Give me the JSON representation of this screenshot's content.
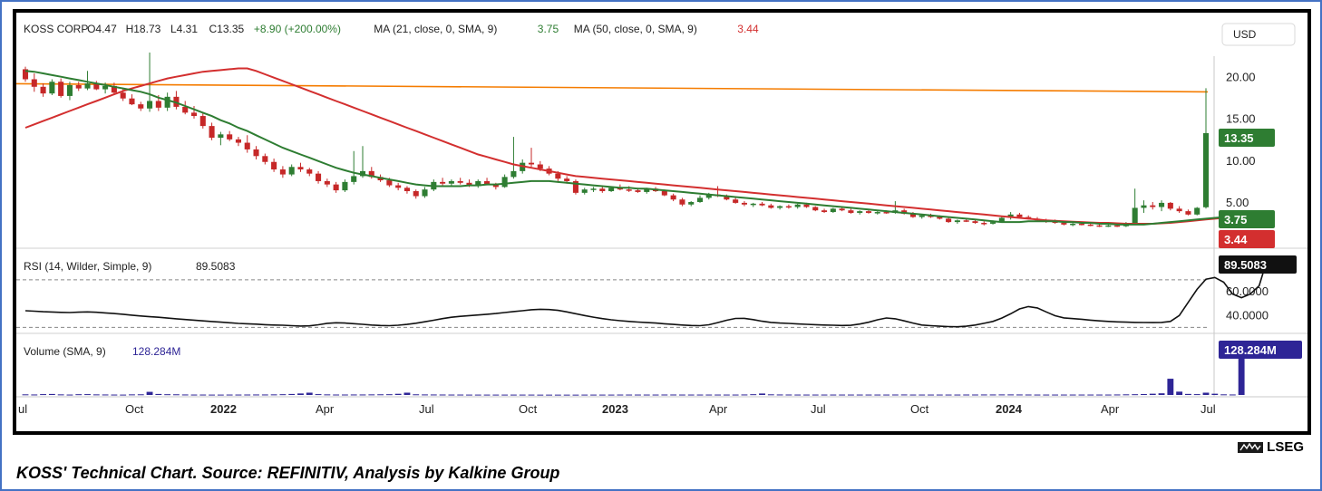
{
  "caption": "KOSS' Technical Chart. Source: REFINITIV, Analysis by Kalkine Group",
  "brand": "LSEG",
  "currency_button": "USD",
  "colors": {
    "up": "#2e7d32",
    "down": "#c62828",
    "ma21": "#2e7d32",
    "ma50": "#d32f2f",
    "resistance": "#f57c00",
    "rsi": "#111111",
    "volume": "#2e2596",
    "frame": "#4472c4"
  },
  "legend": {
    "symbol": "KOSS CORP",
    "open": "O4.47",
    "high": "H18.73",
    "low": "L4.31",
    "close": "C13.35",
    "change": "+8.90 (+200.00%)",
    "ma21_label": "MA (21, close, 0, SMA, 9)",
    "ma21_value": "3.75",
    "ma50_label": "MA (50, close, 0, SMA, 9)",
    "ma50_value": "3.44"
  },
  "rsi_legend": {
    "label": "RSI (14, Wilder, Simple, 9)",
    "value": "89.5083"
  },
  "volume_legend": {
    "label": "Volume (SMA, 9)",
    "value": "128.284M"
  },
  "badges": {
    "last": "13.35",
    "ma21": "3.75",
    "ma50": "3.44",
    "rsi": "89.5083",
    "volume": "128.284M"
  },
  "chart_data": {
    "type": "candlestick",
    "x_labels": [
      "ul",
      "Oct",
      "2022",
      "Apr",
      "Jul",
      "Oct",
      "2023",
      "Apr",
      "Jul",
      "Oct",
      "2024",
      "Apr",
      "Jul"
    ],
    "bold_labels": [
      "2022",
      "2023",
      "2024"
    ],
    "price_ticks": [
      "20.00",
      "15.00",
      "10.00",
      "5.00"
    ],
    "price_range": [
      0,
      23
    ],
    "resistance_level": 18.4,
    "candles": [
      [
        21.0,
        21.3,
        19.5,
        19.8
      ],
      [
        19.8,
        20.5,
        18.3,
        18.9
      ],
      [
        18.9,
        19.3,
        17.7,
        18.1
      ],
      [
        18.1,
        19.8,
        17.9,
        19.5
      ],
      [
        19.5,
        19.9,
        17.6,
        17.8
      ],
      [
        17.8,
        19.5,
        17.3,
        19.1
      ],
      [
        19.1,
        19.5,
        18.4,
        18.7
      ],
      [
        18.7,
        20.8,
        18.5,
        19.3
      ],
      [
        19.3,
        19.6,
        18.5,
        18.6
      ],
      [
        18.6,
        19.4,
        18.1,
        19.0
      ],
      [
        19.0,
        19.4,
        17.9,
        18.2
      ],
      [
        18.2,
        18.6,
        17.2,
        17.5
      ],
      [
        17.5,
        18.0,
        16.7,
        16.8
      ],
      [
        16.8,
        17.1,
        16.0,
        16.3
      ],
      [
        16.3,
        23.0,
        15.9,
        17.2
      ],
      [
        17.2,
        17.9,
        16.0,
        16.4
      ],
      [
        16.4,
        18.2,
        16.0,
        17.7
      ],
      [
        17.7,
        18.4,
        16.2,
        16.5
      ],
      [
        16.5,
        17.2,
        15.6,
        15.8
      ],
      [
        15.8,
        16.6,
        15.1,
        15.4
      ],
      [
        15.4,
        15.8,
        13.9,
        14.2
      ],
      [
        14.2,
        14.6,
        12.5,
        12.8
      ],
      [
        12.8,
        13.5,
        11.9,
        13.2
      ],
      [
        13.2,
        13.6,
        12.4,
        12.6
      ],
      [
        12.6,
        12.9,
        11.8,
        12.2
      ],
      [
        12.2,
        13.1,
        11.0,
        11.4
      ],
      [
        11.4,
        11.8,
        10.2,
        10.6
      ],
      [
        10.6,
        10.9,
        9.6,
        9.9
      ],
      [
        9.9,
        10.3,
        8.7,
        9.0
      ],
      [
        9.0,
        9.4,
        8.0,
        8.4
      ],
      [
        8.4,
        9.6,
        8.2,
        9.3
      ],
      [
        9.3,
        9.8,
        8.7,
        9.0
      ],
      [
        9.0,
        9.2,
        8.2,
        8.5
      ],
      [
        8.5,
        8.8,
        7.3,
        7.6
      ],
      [
        7.6,
        7.9,
        6.9,
        7.2
      ],
      [
        7.2,
        7.5,
        6.2,
        6.5
      ],
      [
        6.5,
        7.8,
        6.3,
        7.5
      ],
      [
        7.5,
        11.2,
        7.2,
        8.2
      ],
      [
        8.2,
        11.8,
        8.0,
        8.8
      ],
      [
        8.8,
        9.3,
        7.9,
        8.1
      ],
      [
        8.1,
        8.4,
        7.5,
        7.7
      ],
      [
        7.7,
        8.0,
        6.9,
        7.1
      ],
      [
        7.1,
        7.4,
        6.5,
        6.8
      ],
      [
        6.8,
        7.0,
        6.1,
        6.4
      ],
      [
        6.4,
        6.6,
        5.5,
        5.8
      ],
      [
        5.8,
        6.9,
        5.6,
        6.6
      ],
      [
        6.6,
        7.8,
        6.4,
        7.5
      ],
      [
        7.5,
        8.0,
        7.0,
        7.3
      ],
      [
        7.3,
        7.8,
        7.0,
        7.6
      ],
      [
        7.6,
        8.0,
        7.2,
        7.4
      ],
      [
        7.4,
        7.8,
        6.9,
        7.0
      ],
      [
        7.0,
        7.8,
        6.8,
        7.6
      ],
      [
        7.6,
        8.0,
        7.1,
        7.2
      ],
      [
        7.2,
        7.4,
        6.6,
        6.9
      ],
      [
        6.9,
        8.4,
        6.8,
        8.1
      ],
      [
        8.1,
        12.9,
        7.9,
        8.8
      ],
      [
        8.8,
        10.2,
        8.5,
        9.8
      ],
      [
        9.8,
        11.6,
        9.3,
        9.6
      ],
      [
        9.6,
        10.0,
        8.8,
        9.1
      ],
      [
        9.1,
        9.4,
        8.3,
        8.5
      ],
      [
        8.5,
        8.8,
        7.6,
        7.9
      ],
      [
        7.9,
        8.2,
        7.3,
        7.6
      ],
      [
        7.6,
        7.8,
        6.0,
        6.2
      ],
      [
        6.2,
        6.8,
        6.0,
        6.6
      ],
      [
        6.6,
        6.9,
        6.3,
        6.7
      ],
      [
        6.7,
        6.9,
        6.2,
        6.4
      ],
      [
        6.4,
        7.0,
        6.3,
        6.8
      ],
      [
        6.8,
        7.2,
        6.5,
        6.6
      ],
      [
        6.6,
        7.0,
        6.3,
        6.5
      ],
      [
        6.5,
        6.8,
        6.2,
        6.3
      ],
      [
        6.3,
        6.8,
        6.1,
        6.7
      ],
      [
        6.7,
        6.9,
        6.3,
        6.4
      ],
      [
        6.4,
        6.6,
        5.8,
        5.9
      ],
      [
        5.9,
        6.1,
        5.2,
        5.4
      ],
      [
        5.4,
        5.6,
        4.6,
        4.8
      ],
      [
        4.8,
        5.2,
        4.6,
        5.1
      ],
      [
        5.1,
        5.9,
        5.0,
        5.6
      ],
      [
        5.6,
        6.2,
        5.4,
        6.0
      ],
      [
        6.0,
        7.0,
        5.7,
        5.8
      ],
      [
        5.8,
        6.0,
        5.3,
        5.4
      ],
      [
        5.4,
        5.6,
        4.9,
        5.0
      ],
      [
        5.0,
        5.2,
        4.6,
        4.8
      ],
      [
        4.8,
        5.0,
        4.5,
        4.9
      ],
      [
        4.9,
        5.1,
        4.6,
        4.7
      ],
      [
        4.7,
        4.9,
        4.3,
        4.4
      ],
      [
        4.4,
        4.7,
        4.2,
        4.6
      ],
      [
        4.6,
        4.8,
        4.3,
        4.5
      ],
      [
        4.5,
        4.9,
        4.3,
        4.8
      ],
      [
        4.8,
        5.0,
        4.4,
        4.5
      ],
      [
        4.5,
        4.6,
        4.0,
        4.1
      ],
      [
        4.1,
        4.3,
        3.8,
        3.9
      ],
      [
        3.9,
        4.4,
        3.8,
        4.3
      ],
      [
        4.3,
        4.6,
        4.0,
        4.1
      ],
      [
        4.1,
        4.3,
        3.7,
        3.8
      ],
      [
        3.8,
        4.1,
        3.6,
        4.0
      ],
      [
        4.0,
        4.2,
        3.7,
        3.8
      ],
      [
        3.8,
        4.0,
        3.6,
        3.9
      ],
      [
        3.9,
        4.1,
        3.7,
        3.8
      ],
      [
        3.8,
        5.2,
        3.7,
        4.1
      ],
      [
        4.1,
        4.3,
        3.6,
        3.7
      ],
      [
        3.7,
        3.9,
        3.2,
        3.3
      ],
      [
        3.3,
        3.6,
        3.1,
        3.5
      ],
      [
        3.5,
        3.7,
        3.2,
        3.3
      ],
      [
        3.3,
        3.5,
        3.0,
        3.1
      ],
      [
        3.1,
        3.3,
        2.6,
        2.7
      ],
      [
        2.7,
        3.0,
        2.5,
        2.9
      ],
      [
        2.9,
        3.2,
        2.7,
        2.8
      ],
      [
        2.8,
        3.0,
        2.5,
        2.6
      ],
      [
        2.6,
        2.8,
        2.3,
        2.5
      ],
      [
        2.5,
        2.9,
        2.4,
        2.7
      ],
      [
        2.7,
        3.4,
        2.6,
        3.2
      ],
      [
        3.2,
        3.9,
        3.0,
        3.6
      ],
      [
        3.6,
        3.8,
        3.1,
        3.3
      ],
      [
        3.3,
        3.5,
        3.0,
        3.1
      ],
      [
        3.1,
        3.3,
        2.8,
        2.9
      ],
      [
        2.9,
        3.1,
        2.6,
        2.8
      ],
      [
        2.8,
        3.0,
        2.5,
        2.6
      ],
      [
        2.6,
        2.8,
        2.3,
        2.4
      ],
      [
        2.4,
        2.6,
        2.2,
        2.5
      ],
      [
        2.5,
        2.7,
        2.3,
        2.4
      ],
      [
        2.4,
        2.6,
        2.2,
        2.3
      ],
      [
        2.3,
        2.5,
        2.1,
        2.2
      ],
      [
        2.2,
        2.4,
        2.1,
        2.3
      ],
      [
        2.3,
        2.5,
        2.1,
        2.2
      ],
      [
        2.2,
        2.7,
        2.1,
        2.6
      ],
      [
        2.6,
        6.7,
        2.5,
        4.4
      ],
      [
        4.4,
        5.3,
        3.8,
        4.7
      ],
      [
        4.7,
        5.1,
        4.2,
        4.5
      ],
      [
        4.5,
        5.3,
        4.0,
        5.0
      ],
      [
        5.0,
        5.1,
        4.1,
        4.3
      ],
      [
        4.3,
        4.6,
        3.8,
        4.0
      ],
      [
        4.0,
        4.2,
        3.5,
        3.6
      ],
      [
        3.6,
        4.5,
        3.5,
        4.4
      ],
      [
        4.47,
        18.73,
        4.31,
        13.35
      ]
    ],
    "ma21": [
      20.8,
      20.7,
      20.5,
      20.3,
      20.1,
      19.9,
      19.7,
      19.5,
      19.3,
      19.1,
      18.9,
      18.7,
      18.5,
      18.3,
      18.0,
      17.6,
      17.3,
      17.0,
      16.6,
      16.2,
      15.8,
      15.4,
      14.9,
      14.5,
      14.0,
      13.6,
      13.1,
      12.6,
      12.1,
      11.6,
      11.2,
      10.8,
      10.4,
      10.0,
      9.6,
      9.2,
      8.9,
      8.6,
      8.4,
      8.2,
      8.0,
      7.8,
      7.6,
      7.4,
      7.2,
      7.1,
      7.0,
      7.0,
      7.0,
      7.0,
      7.1,
      7.1,
      7.2,
      7.2,
      7.3,
      7.4,
      7.5,
      7.6,
      7.6,
      7.6,
      7.5,
      7.4,
      7.3,
      7.2,
      7.1,
      7.0,
      6.9,
      6.8,
      6.8,
      6.7,
      6.7,
      6.6,
      6.5,
      6.4,
      6.3,
      6.2,
      6.1,
      6.0,
      5.9,
      5.8,
      5.7,
      5.6,
      5.5,
      5.4,
      5.3,
      5.2,
      5.1,
      5.0,
      4.9,
      4.8,
      4.7,
      4.6,
      4.5,
      4.4,
      4.3,
      4.2,
      4.1,
      4.0,
      3.9,
      3.8,
      3.7,
      3.6,
      3.5,
      3.4,
      3.3,
      3.2,
      3.1,
      3.0,
      2.9,
      2.8,
      2.7,
      2.7,
      2.7,
      2.8,
      2.8,
      2.8,
      2.8,
      2.7,
      2.7,
      2.6,
      2.6,
      2.5,
      2.5,
      2.4,
      2.4,
      2.4,
      2.4,
      2.5,
      2.6,
      2.7,
      2.8,
      2.9,
      3.0,
      3.1,
      3.2,
      3.3,
      3.75
    ],
    "ma50": [
      14.0,
      14.4,
      14.8,
      15.2,
      15.6,
      16.0,
      16.4,
      16.8,
      17.2,
      17.6,
      18.0,
      18.4,
      18.7,
      19.0,
      19.3,
      19.6,
      19.9,
      20.1,
      20.3,
      20.5,
      20.7,
      20.8,
      20.9,
      21.0,
      21.1,
      21.1,
      20.8,
      20.4,
      20.0,
      19.6,
      19.2,
      18.8,
      18.4,
      18.0,
      17.6,
      17.2,
      16.8,
      16.4,
      16.0,
      15.6,
      15.2,
      14.8,
      14.4,
      14.0,
      13.6,
      13.2,
      12.8,
      12.4,
      12.0,
      11.6,
      11.2,
      10.8,
      10.5,
      10.2,
      9.9,
      9.6,
      9.4,
      9.2,
      9.0,
      8.8,
      8.6,
      8.4,
      8.2,
      8.1,
      8.0,
      7.9,
      7.8,
      7.7,
      7.6,
      7.5,
      7.4,
      7.3,
      7.2,
      7.1,
      7.0,
      6.9,
      6.8,
      6.7,
      6.6,
      6.5,
      6.4,
      6.3,
      6.2,
      6.1,
      6.0,
      5.9,
      5.8,
      5.7,
      5.6,
      5.5,
      5.4,
      5.3,
      5.2,
      5.1,
      5.0,
      4.9,
      4.8,
      4.7,
      4.6,
      4.5,
      4.4,
      4.3,
      4.2,
      4.1,
      4.0,
      3.9,
      3.8,
      3.7,
      3.6,
      3.5,
      3.4,
      3.3,
      3.2,
      3.1,
      3.0,
      2.9,
      2.85,
      2.8,
      2.75,
      2.7,
      2.65,
      2.6,
      2.6,
      2.55,
      2.5,
      2.5,
      2.5,
      2.5,
      2.55,
      2.6,
      2.7,
      2.8,
      2.9,
      3.0,
      3.1,
      3.2,
      3.44
    ],
    "rsi_ticks": [
      "60.0000",
      "40.0000"
    ],
    "rsi_range": [
      28,
      92
    ],
    "rsi_levels": [
      70,
      30
    ],
    "rsi": [
      44.0,
      43.6,
      43.2,
      42.9,
      42.6,
      42.5,
      42.8,
      43.0,
      42.7,
      42.2,
      41.6,
      41.0,
      40.3,
      39.6,
      39.0,
      38.5,
      37.8,
      37.2,
      36.6,
      36.1,
      35.5,
      34.9,
      34.4,
      33.9,
      33.3,
      33.0,
      32.7,
      32.3,
      32.0,
      31.8,
      31.4,
      31.1,
      31.3,
      32.2,
      33.4,
      33.9,
      33.6,
      33.1,
      32.6,
      32.0,
      31.6,
      31.4,
      31.8,
      32.5,
      33.5,
      34.7,
      36.0,
      37.4,
      38.5,
      39.3,
      39.9,
      40.4,
      41.0,
      41.6,
      42.5,
      43.3,
      44.0,
      44.8,
      45.2,
      45.0,
      44.3,
      43.0,
      41.5,
      40.0,
      38.6,
      37.4,
      36.4,
      35.6,
      35.0,
      34.5,
      34.0,
      33.6,
      33.0,
      32.5,
      32.0,
      31.6,
      31.4,
      32.2,
      34.0,
      36.0,
      37.5,
      37.6,
      36.5,
      35.2,
      34.2,
      33.6,
      33.3,
      32.9,
      32.6,
      32.3,
      32.0,
      31.8,
      31.6,
      31.7,
      32.8,
      34.3,
      36.4,
      37.9,
      37.2,
      35.5,
      33.6,
      32.0,
      31.4,
      31.0,
      30.7,
      30.5,
      31.0,
      32.0,
      33.4,
      35.0,
      37.8,
      41.4,
      45.5,
      47.5,
      46.4,
      43.0,
      39.8,
      38.0,
      37.4,
      36.8,
      36.1,
      35.5,
      35.0,
      34.6,
      34.4,
      34.2,
      34.1,
      34.0,
      34.2,
      35.0,
      40.0,
      51.0,
      62.0,
      70.5,
      72.0,
      68.0,
      58.0,
      55.0,
      58.0,
      65.0,
      89.5
    ],
    "volume_tick": "100M",
    "volume_range": [
      0,
      135
    ],
    "volume": [
      1.5,
      1.2,
      2.0,
      2.4,
      1.4,
      1.0,
      1.8,
      2.0,
      1.4,
      1.2,
      1.0,
      0.9,
      1.4,
      1.6,
      7.5,
      2.4,
      1.8,
      1.6,
      1.2,
      1.0,
      1.0,
      0.9,
      0.9,
      1.0,
      1.0,
      1.1,
      1.2,
      1.2,
      1.4,
      1.8,
      2.4,
      3.6,
      5.5,
      2.0,
      1.4,
      1.1,
      1.1,
      1.2,
      1.2,
      1.4,
      1.6,
      1.8,
      2.8,
      5.5,
      1.6,
      1.3,
      1.2,
      1.1,
      1.0,
      1.0,
      0.9,
      0.9,
      0.9,
      0.9,
      0.9,
      0.9,
      0.9,
      0.9,
      0.8,
      0.8,
      0.8,
      0.8,
      0.8,
      0.9,
      0.9,
      0.9,
      0.9,
      1.0,
      1.0,
      1.0,
      1.0,
      1.0,
      1.1,
      1.1,
      1.0,
      1.0,
      1.0,
      1.0,
      1.0,
      1.0,
      1.0,
      1.2,
      1.8,
      3.5,
      1.5,
      1.2,
      1.1,
      1.0,
      1.0,
      1.0,
      1.0,
      1.0,
      1.0,
      1.0,
      1.0,
      1.0,
      1.0,
      1.0,
      1.1,
      1.2,
      1.0,
      1.0,
      1.0,
      1.0,
      1.0,
      1.0,
      1.1,
      1.1,
      1.2,
      1.2,
      1.3,
      1.3,
      1.2,
      1.1,
      1.0,
      1.0,
      1.0,
      1.0,
      1.0,
      1.0,
      1.0,
      1.0,
      1.0,
      1.2,
      1.5,
      1.8,
      2.2,
      3.0,
      4.0,
      39.0,
      8.0,
      2.5,
      2.0,
      5.5,
      3.0,
      1.5,
      1.2,
      128.3
    ]
  }
}
